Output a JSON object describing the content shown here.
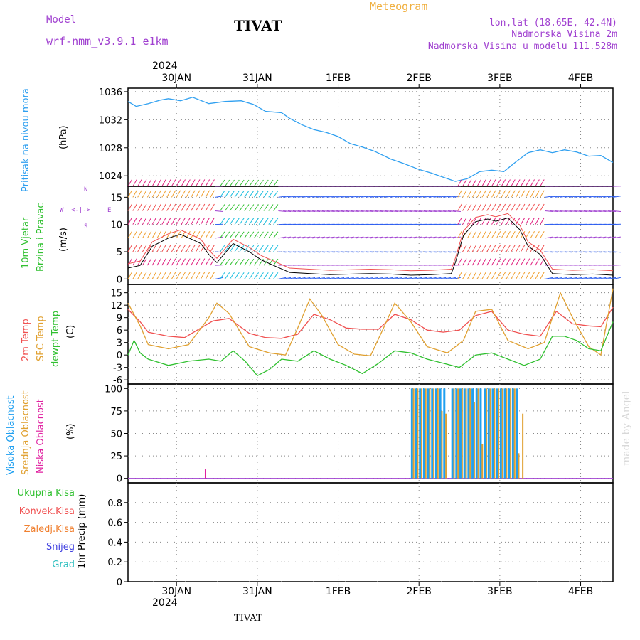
{
  "header": {
    "model_label": "Model",
    "model_name": "wrf-nmm_v3.9.1 e1km",
    "title": "TIVAT",
    "subtitle": "Meteogram",
    "lonlat": "lon,lat (18.65E, 42.4N)",
    "altitude": "Nadmorska Visina 2m",
    "model_altitude": "Nadmorska Visina u modelu 111.528m",
    "year_top": "2024",
    "footer_station": "TIVAT",
    "watermark": "made by Angel"
  },
  "colors": {
    "pressure": "#30a0f0",
    "temp2m": "#f05050",
    "sfc_temp": "#e0a030",
    "dewpt": "#30c030",
    "high_cloud": "#20a0f0",
    "mid_cloud": "#e0a030",
    "low_cloud": "#e020a0",
    "wind_label": "#30c030",
    "wind_dir": "#a040d0"
  },
  "xaxis": {
    "top_dates": [
      "30JAN",
      "31JAN",
      "1FEB",
      "2FEB",
      "3FEB",
      "4FEB"
    ],
    "bottom_dates": [
      "30JAN",
      "31JAN",
      "1FEB",
      "2FEB",
      "3FEB",
      "4FEB"
    ],
    "year_bottom": "2024"
  },
  "panels": {
    "pressure": {
      "label": "Pritisak na nivou mora",
      "unit": "(hPa)"
    },
    "wind": {
      "label1": "10m Vjetar",
      "label2": "Brzina i Pravac",
      "unit": "(m/s)",
      "dir_n": "N",
      "dir_e": "E",
      "dir_w": "W",
      "dir_s": "S"
    },
    "temp": {
      "label1": "2m Temp",
      "label2": "SFC Temp",
      "label3": "dewpt Temp",
      "unit": "(C)"
    },
    "cloud": {
      "label1": "Visoka Oblacnost",
      "label2": "Srednja Oblacnost",
      "label3": "Niska Oblacnost",
      "unit": "(%)"
    },
    "precip": {
      "unit": "1hr Precip (mm)",
      "legend": [
        "Ukupna Kisa",
        "Konvek.Kisa",
        "Zaledj.Kisa",
        "Snijeg",
        "Grad"
      ],
      "legend_colors": [
        "#30c030",
        "#f05050",
        "#f08030",
        "#4040e0",
        "#30c0c0"
      ]
    }
  },
  "chart_data": [
    {
      "type": "line",
      "name": "pressure",
      "x_days": [
        0,
        0.2,
        0.5,
        0.8,
        1.0,
        1.3,
        1.6,
        2.0,
        2.4,
        2.8,
        3.1,
        3.4,
        3.8,
        4.0,
        4.3,
        4.6,
        4.9,
        5.2,
        5.5,
        5.8,
        6.1,
        6.5,
        6.8,
        7.2,
        7.5,
        7.8,
        8.1,
        8.4,
        8.7,
        9.0,
        9.3,
        9.6,
        9.9,
        10.2,
        10.5,
        10.8,
        11.1,
        11.4,
        11.7,
        12.0
      ],
      "y": [
        1034.6,
        1033.9,
        1034.3,
        1034.8,
        1035.0,
        1034.7,
        1035.2,
        1034.3,
        1034.6,
        1034.7,
        1034.2,
        1033.2,
        1033.0,
        1032.2,
        1031.3,
        1030.6,
        1030.2,
        1029.6,
        1028.6,
        1028.1,
        1027.5,
        1026.4,
        1025.8,
        1024.9,
        1024.4,
        1023.8,
        1023.2,
        1023.6,
        1024.6,
        1024.8,
        1024.6,
        1026.0,
        1027.3,
        1027.7,
        1027.3,
        1027.7,
        1027.4,
        1026.8,
        1026.9,
        1025.9
      ],
      "ylim": [
        1022.5,
        1036.5
      ],
      "yticks": [
        1024,
        1028,
        1032,
        1036
      ]
    },
    {
      "type": "line",
      "name": "wind_speed",
      "x_days": [
        0,
        0.3,
        0.6,
        1.0,
        1.3,
        1.6,
        1.8,
        2.0,
        2.2,
        2.6,
        3.0,
        3.3,
        3.6,
        4.0,
        5.0,
        6.0,
        6.5,
        7.0,
        7.5,
        8.0,
        8.1,
        8.3,
        8.6,
        8.9,
        9.1,
        9.4,
        9.7,
        9.9,
        10.2,
        10.5,
        11.0,
        11.5,
        12.0
      ],
      "y": [
        2.0,
        2.5,
        6.0,
        7.5,
        8.2,
        7.2,
        6.5,
        4.5,
        3.0,
        6.5,
        5.0,
        3.5,
        2.5,
        1.2,
        0.8,
        1.0,
        0.9,
        0.7,
        0.8,
        1.0,
        3.0,
        8.0,
        10.5,
        11.0,
        10.6,
        11.2,
        9.0,
        6.0,
        4.5,
        1.0,
        0.8,
        0.9,
        0.7
      ],
      "ylim": [
        -1,
        17
      ],
      "yticks": [
        0,
        5,
        10,
        15
      ]
    },
    {
      "type": "line",
      "name": "temperatures",
      "ylim": [
        -7,
        17
      ],
      "yticks": [
        -6,
        -3,
        0,
        3,
        6,
        9,
        12,
        15
      ],
      "series": [
        {
          "name": "2m Temp",
          "x_days": [
            0,
            0.3,
            0.5,
            1.0,
            1.4,
            1.8,
            2.1,
            2.5,
            3.0,
            3.4,
            3.8,
            4.2,
            4.6,
            5.0,
            5.4,
            5.8,
            6.2,
            6.6,
            7.0,
            7.4,
            7.8,
            8.2,
            8.6,
            9.0,
            9.4,
            9.8,
            10.2,
            10.6,
            11.0,
            11.4,
            11.7,
            12.0
          ],
          "y": [
            11.0,
            8.0,
            5.5,
            4.5,
            4.2,
            6.5,
            8.2,
            8.8,
            5.2,
            4.2,
            4.0,
            5.0,
            9.8,
            8.5,
            6.5,
            6.2,
            6.2,
            9.8,
            8.5,
            6.0,
            5.5,
            6.0,
            9.5,
            10.5,
            6.0,
            5.0,
            4.5,
            10.5,
            7.5,
            7.0,
            6.8,
            11.5
          ]
        },
        {
          "name": "SFC Temp",
          "x_days": [
            0,
            0.3,
            0.5,
            1.0,
            1.5,
            2.0,
            2.2,
            2.5,
            3.0,
            3.5,
            3.9,
            4.2,
            4.5,
            4.8,
            5.2,
            5.6,
            6.0,
            6.3,
            6.6,
            7.0,
            7.4,
            7.9,
            8.3,
            8.6,
            9.0,
            9.4,
            9.9,
            10.3,
            10.7,
            11.0,
            11.4,
            11.7,
            12.0
          ],
          "y": [
            12.5,
            7.0,
            2.5,
            1.5,
            2.5,
            9.0,
            12.5,
            10.0,
            2.0,
            0.5,
            0.0,
            6.5,
            13.5,
            9.5,
            2.5,
            0.2,
            -0.2,
            6.0,
            12.5,
            8.0,
            2.0,
            0.5,
            3.5,
            10.5,
            11.0,
            3.5,
            1.5,
            3.0,
            15.0,
            9.0,
            2.0,
            0.0,
            16.0
          ]
        },
        {
          "name": "dewpt Temp",
          "x_days": [
            0,
            0.15,
            0.3,
            0.5,
            1.0,
            1.5,
            2.0,
            2.3,
            2.6,
            2.9,
            3.2,
            3.5,
            3.8,
            4.2,
            4.6,
            5.0,
            5.4,
            5.8,
            6.2,
            6.6,
            7.0,
            7.4,
            7.8,
            8.2,
            8.6,
            9.0,
            9.4,
            9.8,
            10.2,
            10.5,
            10.8,
            11.1,
            11.4,
            11.7,
            12.0
          ],
          "y": [
            0.0,
            3.5,
            0.5,
            -1.0,
            -2.5,
            -1.5,
            -1.0,
            -1.5,
            1.0,
            -1.5,
            -5.0,
            -3.5,
            -1.0,
            -1.5,
            1.0,
            -1.0,
            -2.5,
            -4.5,
            -2.0,
            1.0,
            0.5,
            -1.0,
            -2.0,
            -3.0,
            0.0,
            0.5,
            -1.0,
            -2.5,
            -1.0,
            4.5,
            4.5,
            3.5,
            1.5,
            1.0,
            8.0
          ]
        }
      ]
    },
    {
      "type": "bar",
      "name": "cloud_cover",
      "ylim": [
        -5,
        105
      ],
      "yticks": [
        0,
        25,
        50,
        75,
        100
      ],
      "high_bars_x": [
        7.0,
        7.1,
        7.2,
        7.3,
        7.4,
        7.5,
        7.6,
        7.7,
        7.8,
        8.0,
        8.1,
        8.2,
        8.3,
        8.4,
        8.5,
        8.6,
        8.7,
        8.8,
        8.9,
        9.0,
        9.1,
        9.2,
        9.3,
        9.4,
        9.5,
        9.6
      ],
      "high_bars_y": [
        100,
        100,
        100,
        100,
        100,
        100,
        100,
        100,
        100,
        100,
        100,
        100,
        100,
        100,
        100,
        100,
        100,
        100,
        100,
        100,
        100,
        100,
        100,
        100,
        100,
        100
      ],
      "mid_bars_x": [
        7.05,
        7.15,
        7.25,
        7.35,
        7.45,
        7.55,
        7.65,
        7.75,
        7.85,
        8.05,
        8.15,
        8.25,
        8.35,
        8.45,
        8.55,
        8.65,
        8.75,
        8.85,
        8.95,
        9.05,
        9.15,
        9.25,
        9.35,
        9.45,
        9.55,
        9.65,
        9.75
      ],
      "mid_bars_y": [
        100,
        100,
        100,
        100,
        100,
        100,
        100,
        75,
        72,
        100,
        100,
        100,
        100,
        100,
        85,
        100,
        38,
        100,
        100,
        100,
        100,
        100,
        100,
        100,
        100,
        28,
        72
      ],
      "low_bars_x": [
        1.9
      ],
      "low_bars_y": [
        10
      ]
    },
    {
      "type": "bar",
      "name": "precip_1hr",
      "ylim": [
        0,
        1.0
      ],
      "yticks": [
        0,
        0.2,
        0.4,
        0.6,
        0.8
      ],
      "values": []
    }
  ]
}
